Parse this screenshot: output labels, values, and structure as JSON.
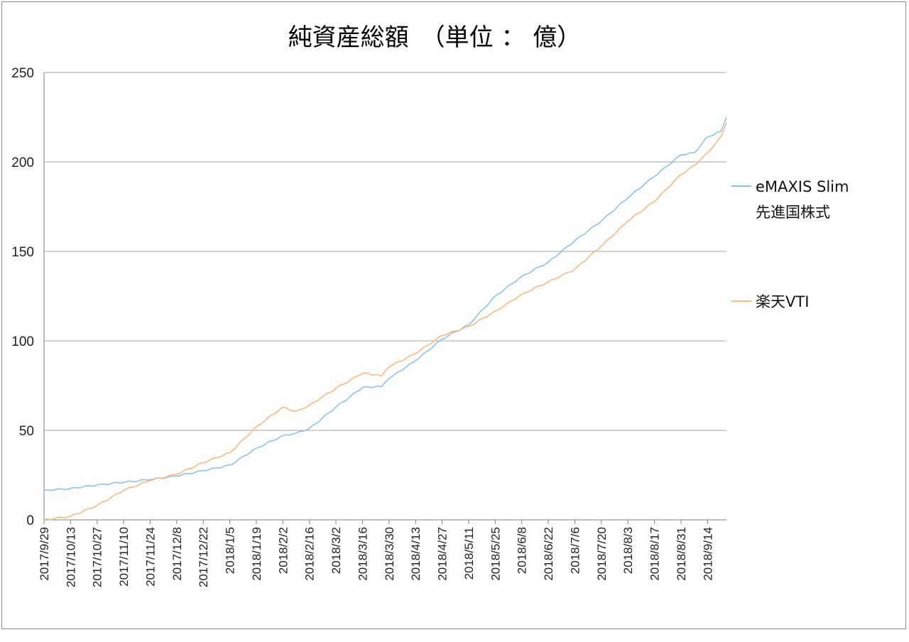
{
  "chart_data": {
    "type": "line",
    "title": "純資産総額　（単位 ： 億）",
    "ylim": [
      0,
      250
    ],
    "y_ticks": [
      "0",
      "50",
      "100",
      "150",
      "200",
      "250"
    ],
    "grid": true,
    "legend_position": "right",
    "x_start": "2017/9/29",
    "x_end": "2018/9/24",
    "x_tick_labels": [
      "2017/9/29",
      "2017/10/13",
      "2017/10/27",
      "2017/11/10",
      "2017/11/24",
      "2017/12/8",
      "2017/12/22",
      "2018/1/5",
      "2018/1/19",
      "2018/2/2",
      "2018/2/16",
      "2018/3/2",
      "2018/3/16",
      "2018/3/30",
      "2018/4/13",
      "2018/4/27",
      "2018/5/11",
      "2018/5/25",
      "2018/6/8",
      "2018/6/22",
      "2018/7/6",
      "2018/7/20",
      "2018/8/3",
      "2018/8/17",
      "2018/8/31",
      "2018/9/14"
    ],
    "series": [
      {
        "name": "eMAXIS Slim 先進国株式",
        "legend_lines": [
          "eMAXIS Slim",
          "先進国株式"
        ],
        "color": "#8ec1ec",
        "points": [
          [
            "2017/9/29",
            16.5
          ],
          [
            "2017/10/13",
            17.5
          ],
          [
            "2017/10/27",
            19.5
          ],
          [
            "2017/11/10",
            21
          ],
          [
            "2017/11/24",
            22.5
          ],
          [
            "2017/12/8",
            24.5
          ],
          [
            "2017/12/22",
            27.5
          ],
          [
            "2018/1/5",
            30.5
          ],
          [
            "2018/1/19",
            40
          ],
          [
            "2018/2/2",
            47
          ],
          [
            "2018/2/9",
            48.5
          ],
          [
            "2018/2/16",
            51
          ],
          [
            "2018/3/2",
            63
          ],
          [
            "2018/3/16",
            74
          ],
          [
            "2018/3/26",
            74.5
          ],
          [
            "2018/3/30",
            79
          ],
          [
            "2018/4/13",
            89
          ],
          [
            "2018/4/27",
            101
          ],
          [
            "2018/5/11",
            109
          ],
          [
            "2018/5/25",
            125
          ],
          [
            "2018/6/8",
            136
          ],
          [
            "2018/6/22",
            144
          ],
          [
            "2018/7/6",
            156
          ],
          [
            "2018/7/20",
            167
          ],
          [
            "2018/8/3",
            180
          ],
          [
            "2018/8/17",
            192
          ],
          [
            "2018/8/31",
            204
          ],
          [
            "2018/9/7",
            205
          ],
          [
            "2018/9/14",
            214
          ],
          [
            "2018/9/21",
            217
          ],
          [
            "2018/9/24",
            225
          ]
        ]
      },
      {
        "name": "楽天VTI",
        "legend_lines": [
          "楽天VTI"
        ],
        "color": "#f7b980",
        "points": [
          [
            "2017/9/29",
            0
          ],
          [
            "2017/10/13",
            2
          ],
          [
            "2017/10/27",
            8
          ],
          [
            "2017/11/10",
            16.5
          ],
          [
            "2017/11/24",
            22
          ],
          [
            "2017/12/8",
            25.5
          ],
          [
            "2017/12/22",
            32
          ],
          [
            "2018/1/5",
            37.5
          ],
          [
            "2018/1/19",
            52
          ],
          [
            "2018/2/2",
            63
          ],
          [
            "2018/2/9",
            60.5
          ],
          [
            "2018/2/16",
            64
          ],
          [
            "2018/3/2",
            73.5
          ],
          [
            "2018/3/16",
            82
          ],
          [
            "2018/3/26",
            80.5
          ],
          [
            "2018/3/30",
            85.5
          ],
          [
            "2018/4/13",
            93
          ],
          [
            "2018/4/27",
            103
          ],
          [
            "2018/5/11",
            108
          ],
          [
            "2018/5/25",
            116.5
          ],
          [
            "2018/6/8",
            126
          ],
          [
            "2018/6/22",
            133
          ],
          [
            "2018/7/6",
            140
          ],
          [
            "2018/7/20",
            153
          ],
          [
            "2018/8/3",
            167
          ],
          [
            "2018/8/17",
            178
          ],
          [
            "2018/8/31",
            193
          ],
          [
            "2018/9/7",
            198
          ],
          [
            "2018/9/14",
            205
          ],
          [
            "2018/9/21",
            214
          ],
          [
            "2018/9/24",
            222
          ]
        ]
      }
    ]
  }
}
